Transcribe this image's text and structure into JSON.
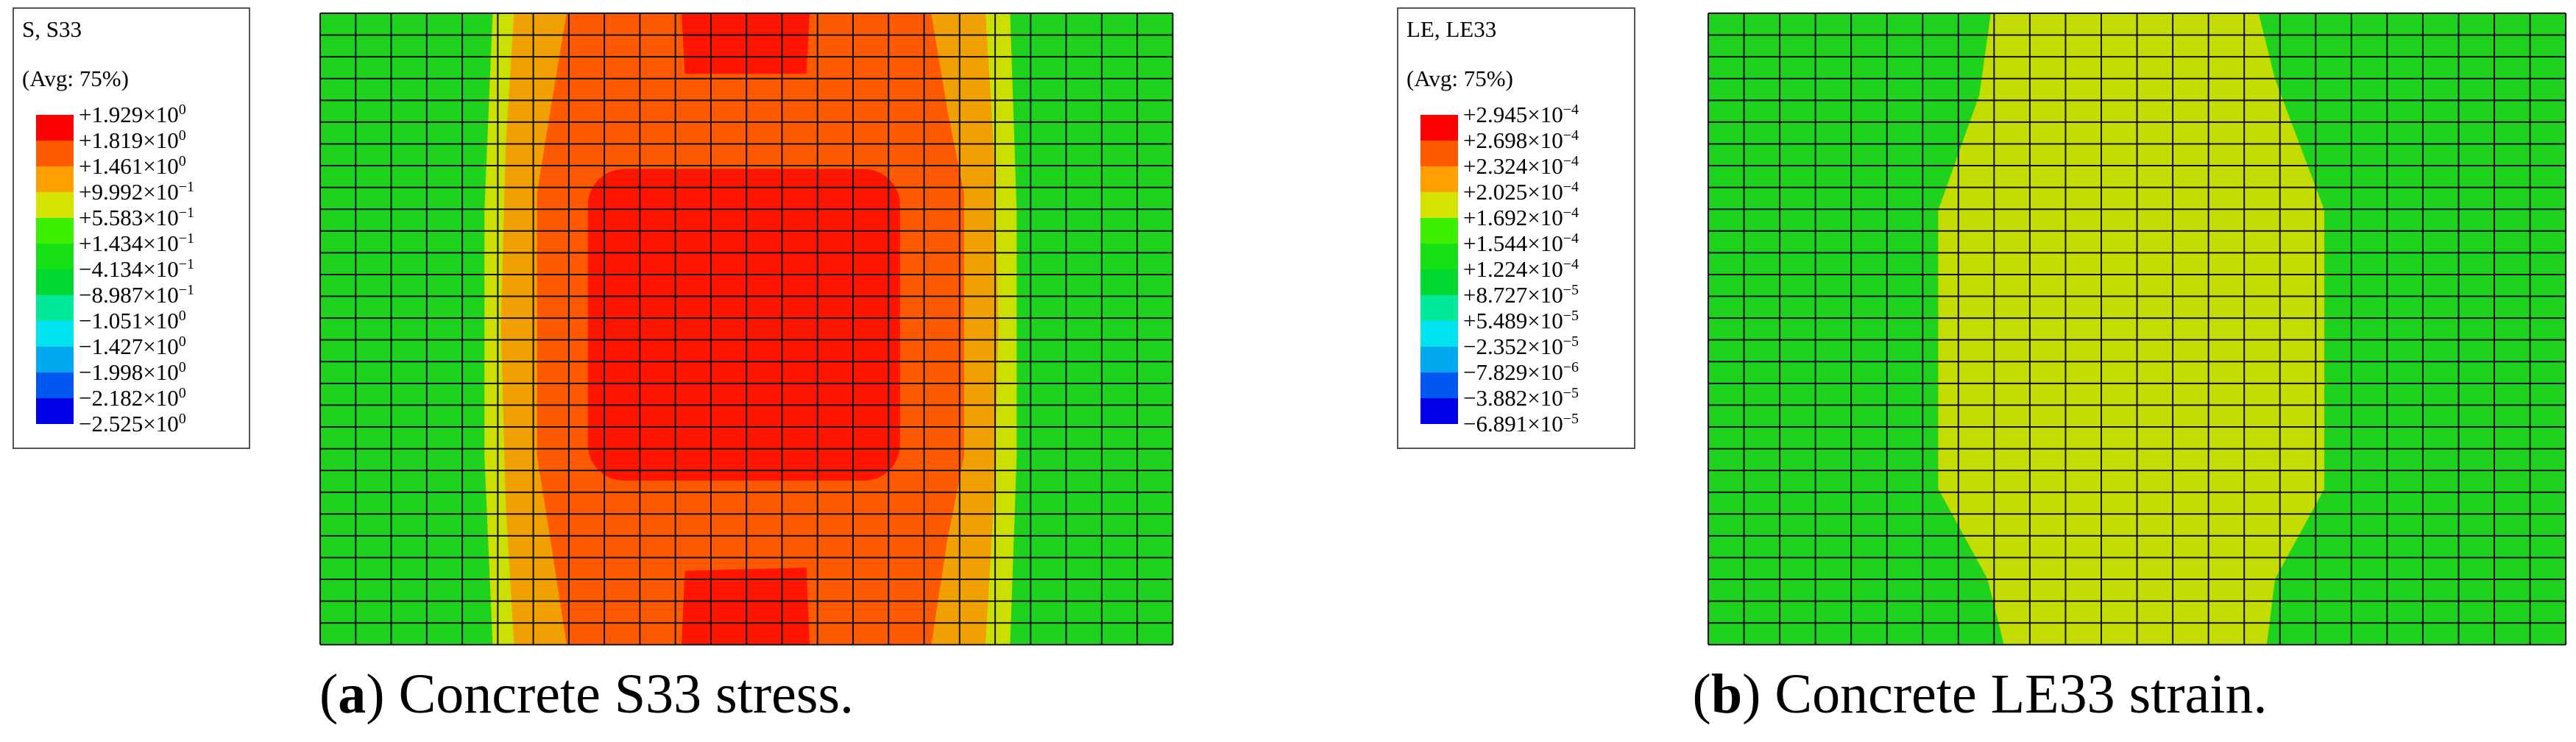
{
  "panels": [
    {
      "legend": {
        "title": "S, S33",
        "subtitle": "(Avg: 75%)",
        "entries": [
          {
            "base": "+1.929×10",
            "exp": "0"
          },
          {
            "base": "+1.819×10",
            "exp": "0"
          },
          {
            "base": "+1.461×10",
            "exp": "0"
          },
          {
            "base": "+9.992×10",
            "exp": "−1"
          },
          {
            "base": "+5.583×10",
            "exp": "−1"
          },
          {
            "base": "+1.434×10",
            "exp": "−1"
          },
          {
            "base": "−4.134×10",
            "exp": "−1"
          },
          {
            "base": "−8.987×10",
            "exp": "−1"
          },
          {
            "base": "−1.051×10",
            "exp": "0"
          },
          {
            "base": "−1.427×10",
            "exp": "0"
          },
          {
            "base": "−1.998×10",
            "exp": "0"
          },
          {
            "base": "−2.182×10",
            "exp": "0"
          },
          {
            "base": "−2.525×10",
            "exp": "0"
          }
        ],
        "colors": [
          "#ff0000",
          "#ff5a00",
          "#ffa000",
          "#d4e400",
          "#3cf000",
          "#14e014",
          "#00d830",
          "#00e89a",
          "#00e4f0",
          "#00a8f0",
          "#0058f0",
          "#0000e8"
        ]
      },
      "caption": {
        "open": "(",
        "label": "a",
        "text": ") Concrete S33 stress."
      }
    },
    {
      "legend": {
        "title": "LE, LE33",
        "subtitle": "(Avg: 75%)",
        "entries": [
          {
            "base": "+2.945×10",
            "exp": "−4"
          },
          {
            "base": "+2.698×10",
            "exp": "−4"
          },
          {
            "base": "+2.324×10",
            "exp": "−4"
          },
          {
            "base": "+2.025×10",
            "exp": "−4"
          },
          {
            "base": "+1.692×10",
            "exp": "−4"
          },
          {
            "base": "+1.544×10",
            "exp": "−4"
          },
          {
            "base": "+1.224×10",
            "exp": "−4"
          },
          {
            "base": "+8.727×10",
            "exp": "−5"
          },
          {
            "base": "+5.489×10",
            "exp": "−5"
          },
          {
            "base": "−2.352×10",
            "exp": "−5"
          },
          {
            "base": "−7.829×10",
            "exp": "−6"
          },
          {
            "base": "−3.882×10",
            "exp": "−5"
          },
          {
            "base": "−6.891×10",
            "exp": "−5"
          }
        ],
        "colors": [
          "#ff0000",
          "#ff5a00",
          "#ffa000",
          "#d4e400",
          "#3cf000",
          "#14e014",
          "#00d830",
          "#00e89a",
          "#00e4f0",
          "#00a8f0",
          "#0058f0",
          "#0000e8"
        ]
      },
      "caption": {
        "open": "(",
        "label": "b",
        "text": ") Concrete LE33 strain."
      }
    }
  ]
}
